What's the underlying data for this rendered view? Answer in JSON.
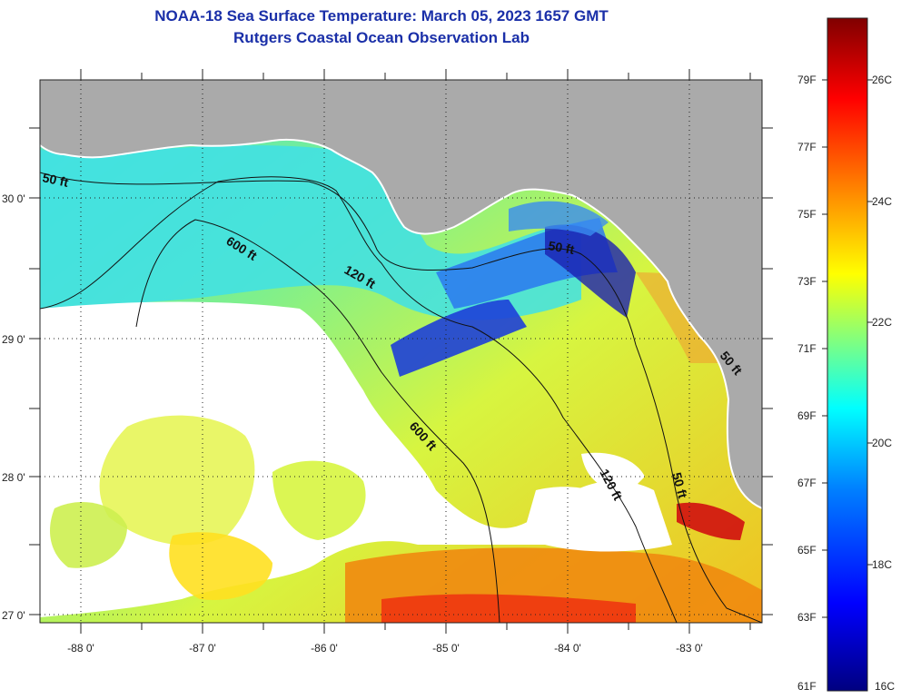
{
  "title_line1": "NOAA-18 Sea Surface Temperature:  March 05, 2023 1657 GMT",
  "title_line2": "Rutgers Coastal Ocean Observation Lab",
  "map": {
    "lon_ticks": [
      {
        "value": -88,
        "label": "-88 0'"
      },
      {
        "value": -87,
        "label": "-87 0'"
      },
      {
        "value": -86,
        "label": "-86 0'"
      },
      {
        "value": -85,
        "label": "-85 0'"
      },
      {
        "value": -84,
        "label": "-84 0'"
      },
      {
        "value": -83,
        "label": "-83 0'"
      }
    ],
    "lat_ticks": [
      {
        "value": 30,
        "label": "30 0'"
      },
      {
        "value": 29,
        "label": "29 0'"
      },
      {
        "value": 28,
        "label": "28 0'"
      },
      {
        "value": 27,
        "label": "27 0'"
      }
    ],
    "contour_labels": [
      "50 ft",
      "120 ft",
      "600 ft",
      "600 ft",
      "120 ft",
      "50 ft",
      "50 ft",
      "50 ft"
    ],
    "colors": {
      "land": "#aaaaaa",
      "cloud": "#ffffff",
      "contour": "#111111"
    }
  },
  "colorbar": {
    "f_labels": [
      "79F",
      "77F",
      "75F",
      "73F",
      "71F",
      "69F",
      "67F",
      "65F",
      "63F",
      "61F"
    ],
    "c_labels": [
      "26C",
      "24C",
      "22C",
      "20C",
      "18C",
      "16C"
    ],
    "stops": [
      "#000080",
      "#0000ff",
      "#0080ff",
      "#00ffff",
      "#80ff80",
      "#ffff00",
      "#ff8000",
      "#ff0000",
      "#800000"
    ]
  }
}
